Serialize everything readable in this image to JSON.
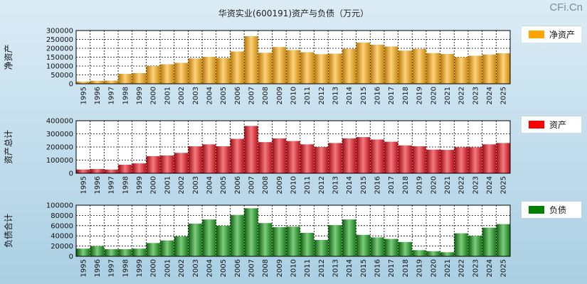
{
  "title": "华资实业(600191)资产与负债（万元）",
  "watermark": "CFi.Cn",
  "colors": {
    "net_assets": "#f0a21c",
    "assets": "#e0202a",
    "liabilities": "#1b7f1b"
  },
  "chart_data": [
    {
      "type": "bar",
      "ylabel": "净资产",
      "legend": "净资产",
      "categories": [
        "1995",
        "1996",
        "1997",
        "1998",
        "1999",
        "2000",
        "2001",
        "2002",
        "2003",
        "2004",
        "2005",
        "2006",
        "2007",
        "2008",
        "2009",
        "2010",
        "2011",
        "2012",
        "2013",
        "2014",
        "2015",
        "2016",
        "2017",
        "2018",
        "2019",
        "2020",
        "2021",
        "2022",
        "2023",
        "2024",
        "2025"
      ],
      "values": [
        12000,
        17000,
        18000,
        56000,
        60000,
        100000,
        110000,
        118000,
        143000,
        152000,
        145000,
        182000,
        268000,
        175000,
        207000,
        190000,
        178000,
        167000,
        170000,
        197000,
        232000,
        220000,
        210000,
        187000,
        196000,
        173000,
        168000,
        150000,
        158000,
        165000,
        172000
      ],
      "ylim": [
        0,
        300000
      ],
      "yticks": [
        "0",
        "50000",
        "100000",
        "150000",
        "200000",
        "250000",
        "300000"
      ]
    },
    {
      "type": "bar",
      "ylabel": "资产总计",
      "legend": "资产",
      "categories": [
        "1995",
        "1996",
        "1997",
        "1998",
        "1999",
        "2000",
        "2001",
        "2002",
        "2003",
        "2004",
        "2005",
        "2006",
        "2007",
        "2008",
        "2009",
        "2010",
        "2011",
        "2012",
        "2013",
        "2014",
        "2015",
        "2016",
        "2017",
        "2018",
        "2019",
        "2020",
        "2021",
        "2022",
        "2023",
        "2024",
        "2025"
      ],
      "values": [
        28000,
        32000,
        28000,
        65000,
        75000,
        130000,
        135000,
        155000,
        205000,
        220000,
        205000,
        262000,
        360000,
        237000,
        265000,
        245000,
        220000,
        200000,
        230000,
        265000,
        275000,
        257000,
        240000,
        212000,
        205000,
        180000,
        178000,
        198000,
        198000,
        220000,
        230000
      ],
      "ylim": [
        0,
        400000
      ],
      "yticks": [
        "0",
        "100000",
        "200000",
        "300000",
        "400000"
      ]
    },
    {
      "type": "bar",
      "ylabel": "负债合计",
      "legend": "负债",
      "categories": [
        "1995",
        "1996",
        "1997",
        "1998",
        "1999",
        "2000",
        "2001",
        "2002",
        "2003",
        "2004",
        "2005",
        "2006",
        "2007",
        "2008",
        "2009",
        "2010",
        "2011",
        "2012",
        "2013",
        "2014",
        "2015",
        "2016",
        "2017",
        "2018",
        "2019",
        "2020",
        "2021",
        "2022",
        "2023",
        "2024",
        "2025"
      ],
      "values": [
        15000,
        20000,
        14000,
        14000,
        15000,
        26000,
        31000,
        39000,
        64000,
        72000,
        60000,
        81000,
        94000,
        65000,
        57000,
        58000,
        46000,
        32000,
        61000,
        72000,
        42000,
        37000,
        34000,
        28000,
        12000,
        10000,
        8000,
        45000,
        40000,
        56000,
        63000
      ],
      "ylim": [
        0,
        100000
      ],
      "yticks": [
        "0",
        "20000",
        "40000",
        "60000",
        "80000",
        "100000"
      ]
    }
  ]
}
